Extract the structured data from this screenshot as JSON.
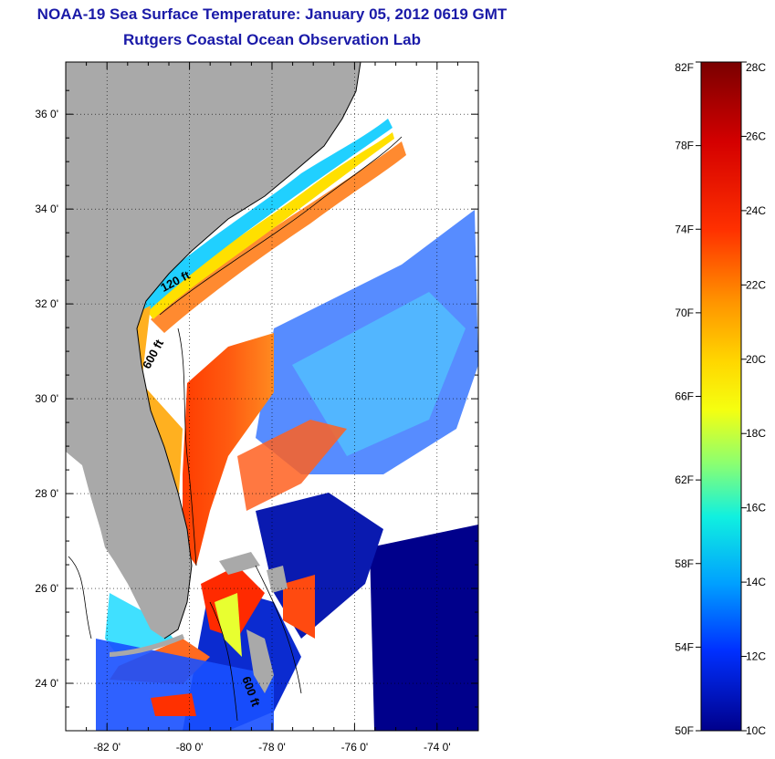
{
  "header": {
    "title": "NOAA-19 Sea Surface Temperature:  January 05, 2012 0619 GMT",
    "subtitle": "Rutgers Coastal Ocean Observation Lab"
  },
  "map": {
    "lat_ticks": [
      {
        "value": 36,
        "label": "36 0'"
      },
      {
        "value": 34,
        "label": "34 0'"
      },
      {
        "value": 32,
        "label": "32 0'"
      },
      {
        "value": 30,
        "label": "30 0'"
      },
      {
        "value": 28,
        "label": "28 0'"
      },
      {
        "value": 26,
        "label": "26 0'"
      },
      {
        "value": 24,
        "label": "24 0'"
      }
    ],
    "lon_ticks": [
      {
        "value": -82,
        "label": "-82 0'"
      },
      {
        "value": -80,
        "label": "-80 0'"
      },
      {
        "value": -78,
        "label": "-78 0'"
      },
      {
        "value": -76,
        "label": "-76 0'"
      },
      {
        "value": -74,
        "label": "-74 0'"
      }
    ],
    "lat_range": [
      23,
      37.1
    ],
    "lon_range": [
      -83,
      -73
    ],
    "contour_labels": [
      {
        "text": "120 ft",
        "lon": -80.3,
        "lat": 32.4
      },
      {
        "text": "600 ft",
        "lon": -80.8,
        "lat": 30.9
      },
      {
        "text": "600 ft",
        "lon": -78.6,
        "lat": 23.8
      }
    ],
    "colors": {
      "land": "#a9a9a9",
      "cold": "#00008b",
      "no_data": "#ffffff"
    }
  },
  "colorbar": {
    "fahrenheit_labels": [
      "82F",
      "78F",
      "74F",
      "70F",
      "66F",
      "62F",
      "58F",
      "54F",
      "50F"
    ],
    "celsius_labels": [
      "28C",
      "26C",
      "24C",
      "22C",
      "20C",
      "18C",
      "16C",
      "14C",
      "12C",
      "10C"
    ],
    "range_celsius": [
      10,
      28
    ]
  }
}
